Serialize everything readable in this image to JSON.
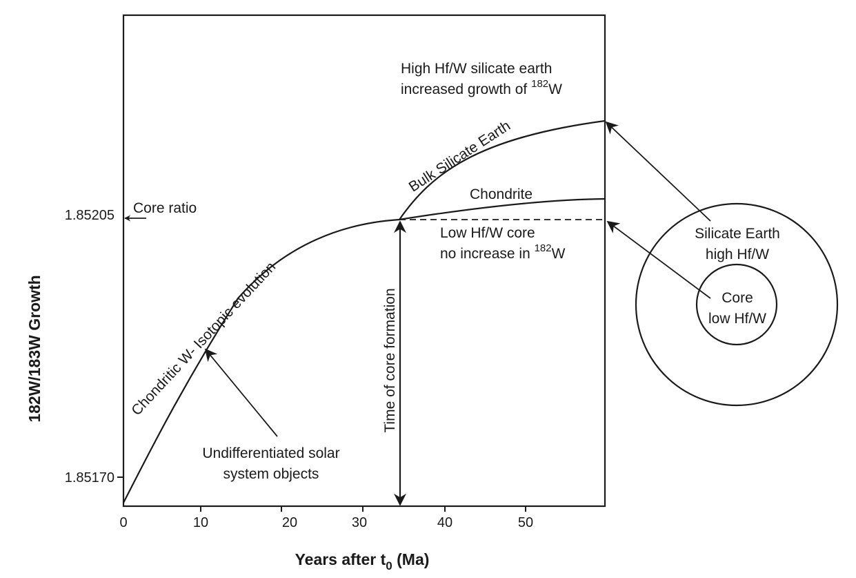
{
  "chart_data": {
    "type": "line",
    "xlabel": "Years after t",
    "xlabel_subscript": "0",
    "xlabel_unit": "(Ma)",
    "ylabel": "182W/183W Growth",
    "x_ticks": [
      "0",
      "10",
      "20",
      "30",
      "40",
      "50"
    ],
    "y_ticks": [
      "1.85170",
      "1.85205"
    ],
    "series": [
      {
        "name": "Chondrite"
      },
      {
        "name": "Bulk Silicate Earth"
      }
    ],
    "color": "#1a1a1a"
  },
  "labels": {
    "core_ratio": "Core ratio",
    "chondritic_evolution": "Chondritic W- Isotopic evolution",
    "undiff_line1": "Undifferentiated solar",
    "undiff_line2": "system objects",
    "time_core_formation": "Time of core formation",
    "bulk_silicate_earth": "Bulk Silicate Earth",
    "chondrite": "Chondrite",
    "high_hfw_line1": "High Hf/W silicate earth",
    "high_hfw_line2_pre": "increased growth of ",
    "high_hfw_line2_sup": "182",
    "high_hfw_line2_post": "W",
    "low_core_line1": "Low Hf/W core",
    "low_core_line2_pre": "no increase in ",
    "low_core_line2_sup": "182",
    "low_core_line2_post": "W",
    "silicate_line1": "Silicate Earth",
    "silicate_line2": "high Hf/W",
    "core_line1": "Core",
    "core_line2": "low Hf/W"
  }
}
